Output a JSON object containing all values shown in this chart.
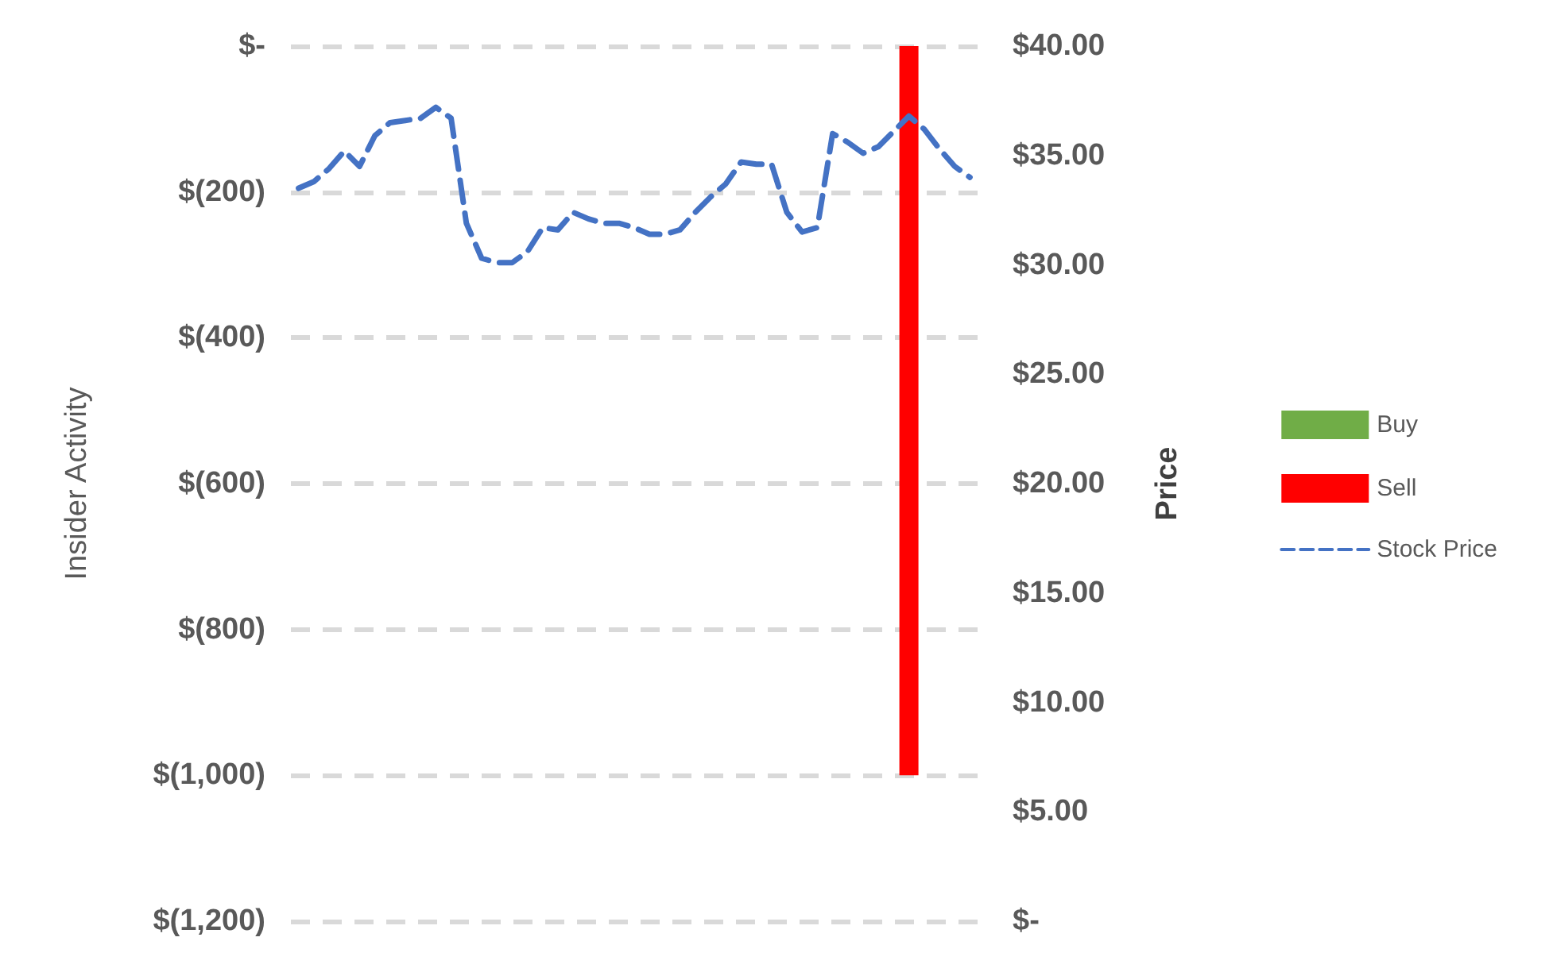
{
  "chart_data": {
    "type": "bar",
    "ylabel": "Insider Activity",
    "y2label": "Price",
    "categories": [
      null,
      null,
      null,
      null,
      null,
      null,
      null,
      null,
      null,
      null,
      null,
      null,
      null,
      null,
      null,
      null,
      null,
      null,
      null,
      null,
      null,
      null,
      null,
      null,
      null,
      null,
      null,
      null,
      null,
      null,
      null,
      null,
      null,
      null,
      null,
      null,
      null,
      null,
      null,
      null,
      null,
      null,
      null,
      null,
      null
    ],
    "series": [
      {
        "name": "Buy",
        "color": "#70ad47",
        "values": [
          null,
          null,
          null,
          null,
          null,
          null,
          null,
          null,
          null,
          null,
          null,
          null,
          null,
          null,
          null,
          null,
          null,
          null,
          null,
          null,
          null,
          null,
          null,
          null,
          null,
          null,
          null,
          null,
          null,
          null,
          null,
          null,
          null,
          null,
          null,
          null,
          null,
          null,
          null,
          null,
          null,
          null,
          null,
          null,
          null
        ]
      },
      {
        "name": "Sell",
        "color": "#ff0000",
        "values": [
          null,
          null,
          null,
          null,
          null,
          null,
          null,
          null,
          null,
          null,
          null,
          null,
          null,
          null,
          null,
          null,
          null,
          null,
          null,
          null,
          null,
          null,
          null,
          null,
          null,
          null,
          null,
          null,
          null,
          null,
          null,
          null,
          null,
          null,
          null,
          null,
          null,
          null,
          null,
          null,
          -1000,
          null,
          null,
          null,
          null
        ]
      },
      {
        "name": "Stock Price",
        "type": "line",
        "axis": "y2",
        "color": "#4472c4",
        "line_style": "dashed",
        "marker": "none",
        "values": [
          33.5,
          33.8,
          34.4,
          35.2,
          34.5,
          35.9,
          36.5,
          36.6,
          36.7,
          37.2,
          36.7,
          31.9,
          30.3,
          30.1,
          30.1,
          30.6,
          31.7,
          31.6,
          32.4,
          32.1,
          31.9,
          31.9,
          31.7,
          31.4,
          31.4,
          31.6,
          32.4,
          33.1,
          33.7,
          34.7,
          34.6,
          34.6,
          32.4,
          31.5,
          31.7,
          36.0,
          35.6,
          35.1,
          35.4,
          36.1,
          36.8,
          36.2,
          35.3,
          34.5,
          34.0
        ]
      }
    ],
    "ylim": [
      -1200,
      0
    ],
    "yticks": [
      {
        "value": -1200,
        "label": "$(1,200)"
      },
      {
        "value": -1000,
        "label": "$(1,000)"
      },
      {
        "value": -800,
        "label": "$(800)"
      },
      {
        "value": -600,
        "label": "$(600)"
      },
      {
        "value": -400,
        "label": "$(400)"
      },
      {
        "value": -200,
        "label": "$(200)"
      },
      {
        "value": 0,
        "label": "$-"
      }
    ],
    "y2lim": [
      0,
      40
    ],
    "y2ticks": [
      {
        "value": 0,
        "label": "$-"
      },
      {
        "value": 5,
        "label": "$5.00"
      },
      {
        "value": 10,
        "label": "$10.00"
      },
      {
        "value": 15,
        "label": "$15.00"
      },
      {
        "value": 20,
        "label": "$20.00"
      },
      {
        "value": 25,
        "label": "$25.00"
      },
      {
        "value": 30,
        "label": "$30.00"
      },
      {
        "value": 35,
        "label": "$35.00"
      },
      {
        "value": 40,
        "label": "$40.00"
      }
    ],
    "grid": "y",
    "legend": "right",
    "tick_labels": "y"
  }
}
